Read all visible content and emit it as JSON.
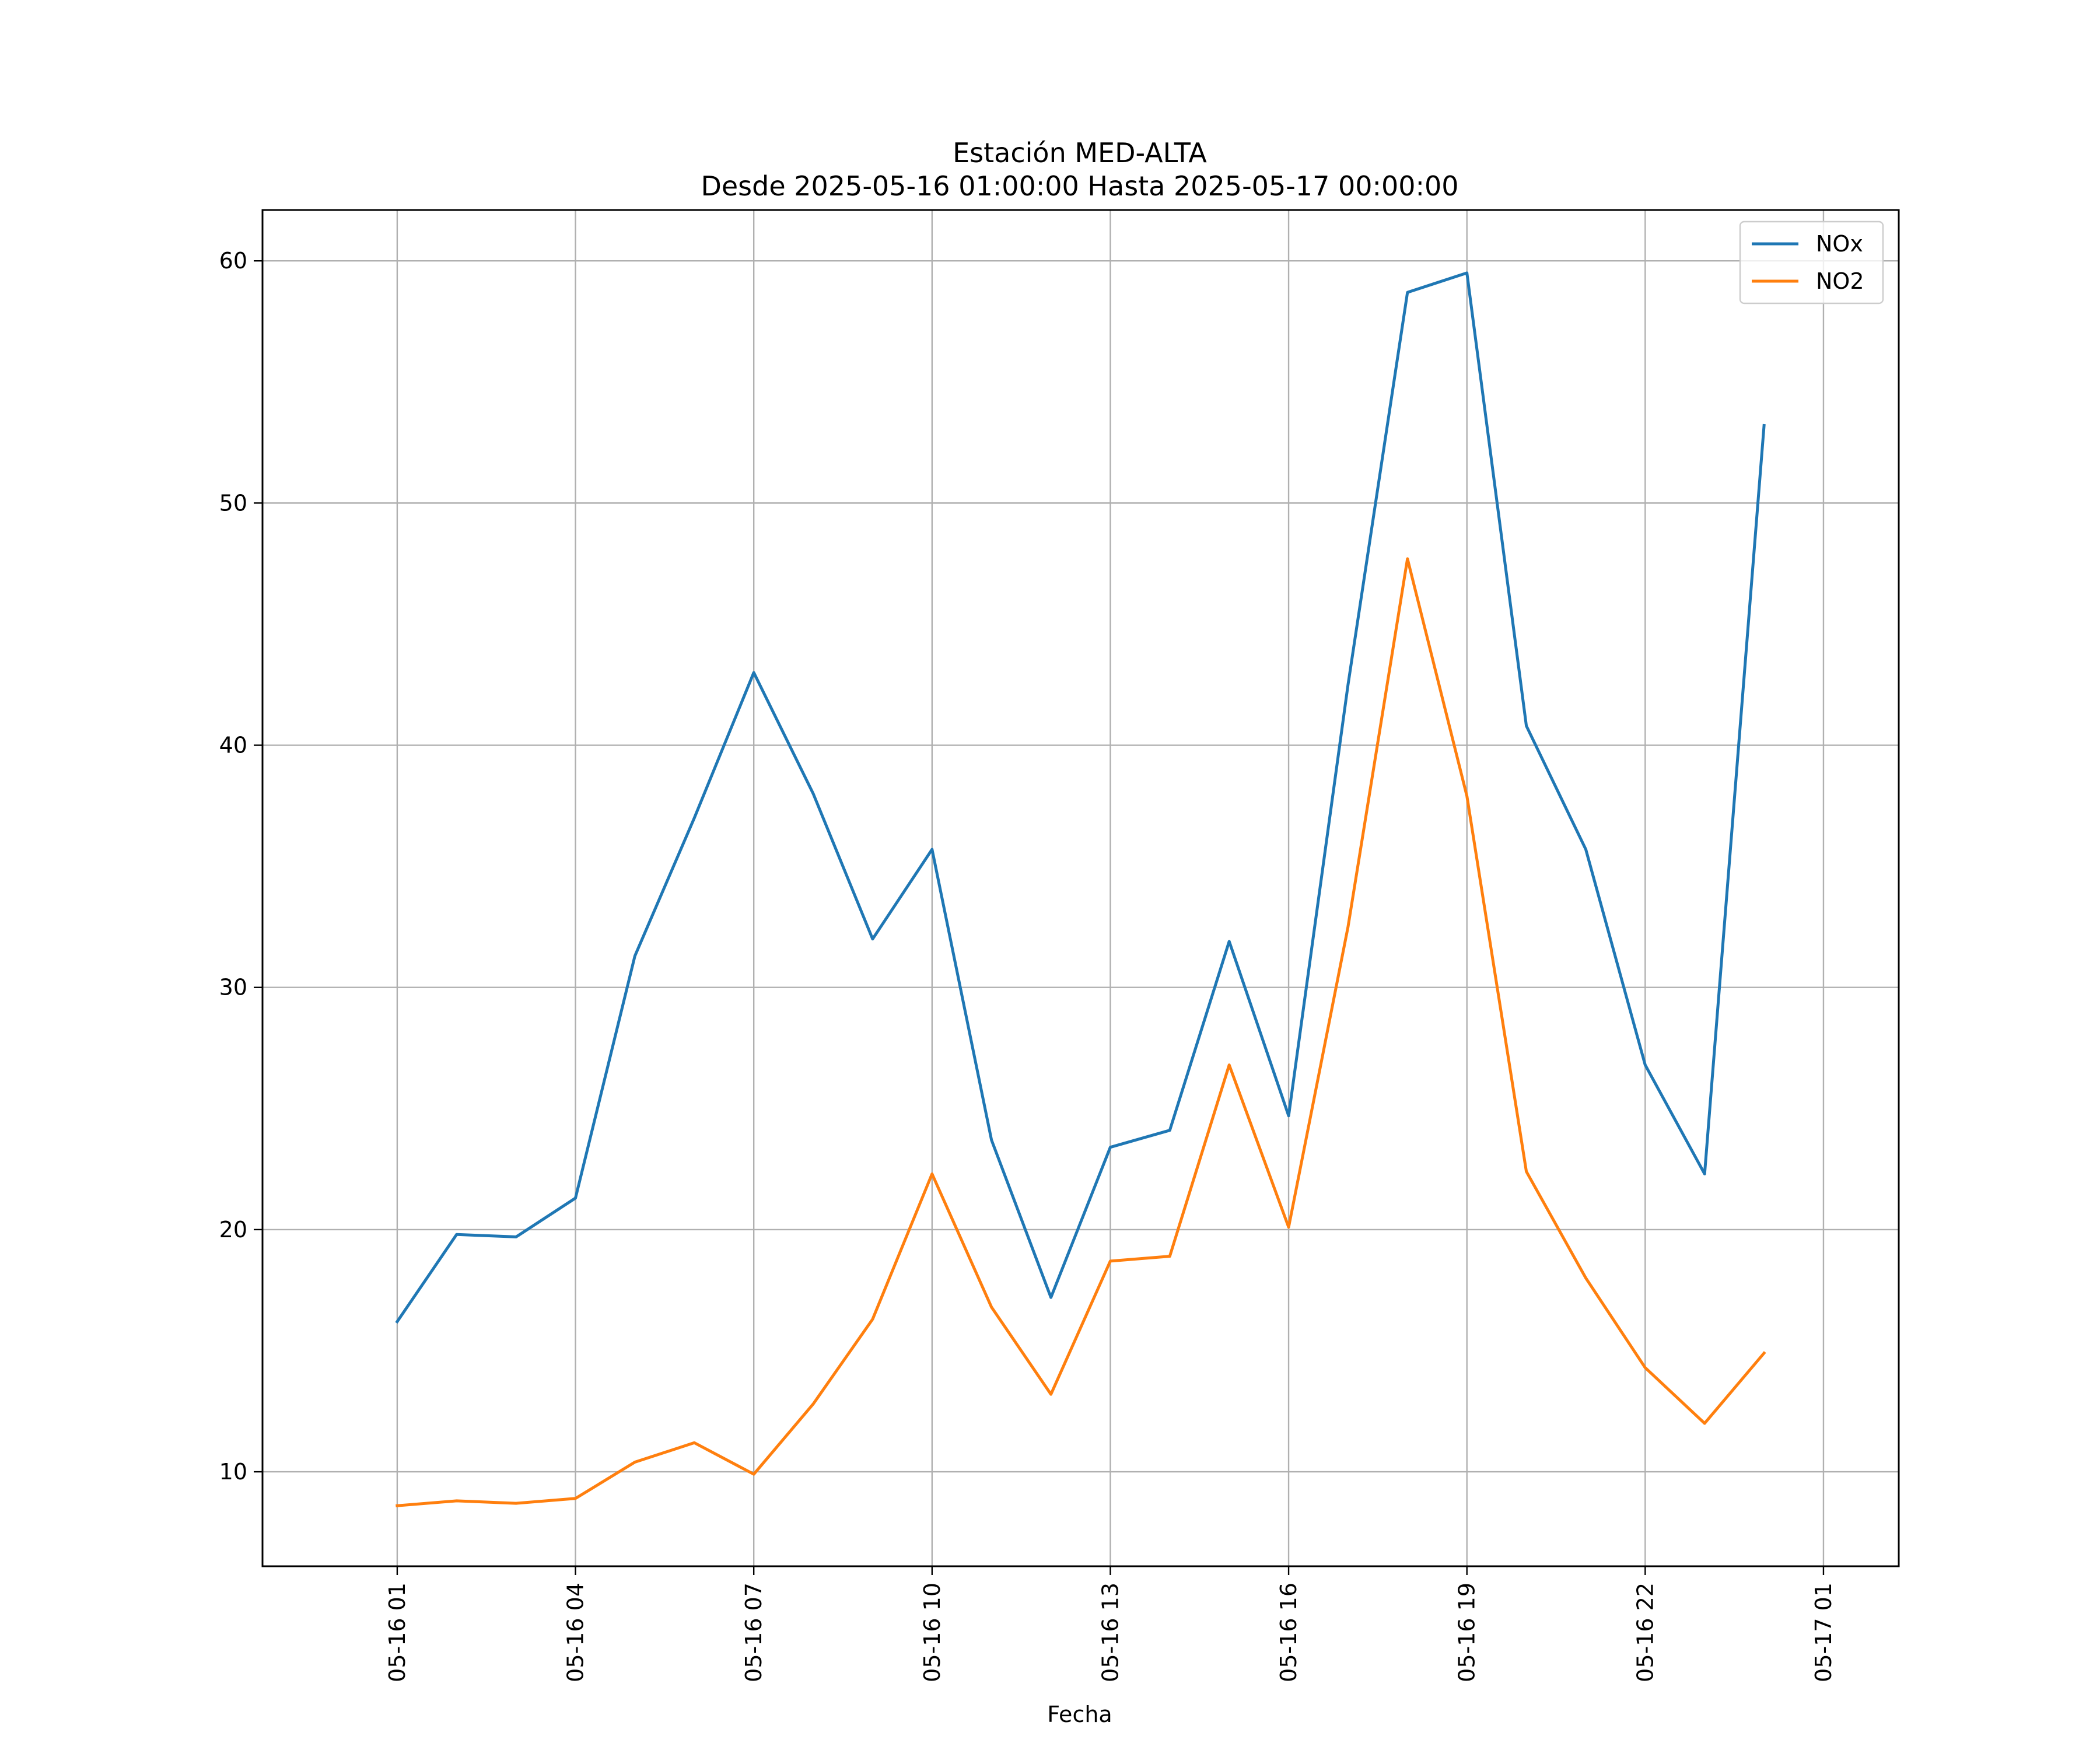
{
  "chart_data": {
    "type": "line",
    "title": "Estación MED-ALTA",
    "subtitle": "Desde 2025-05-16 01:00:00 Hasta 2025-05-17 00:00:00",
    "xlabel": "Fecha",
    "ylabel": "",
    "x": [
      "2025-05-16 01:00",
      "2025-05-16 02:00",
      "2025-05-16 03:00",
      "2025-05-16 04:00",
      "2025-05-16 05:00",
      "2025-05-16 06:00",
      "2025-05-16 07:00",
      "2025-05-16 08:00",
      "2025-05-16 09:00",
      "2025-05-16 10:00",
      "2025-05-16 11:00",
      "2025-05-16 12:00",
      "2025-05-16 13:00",
      "2025-05-16 14:00",
      "2025-05-16 15:00",
      "2025-05-16 16:00",
      "2025-05-16 17:00",
      "2025-05-16 18:00",
      "2025-05-16 19:00",
      "2025-05-16 20:00",
      "2025-05-16 21:00",
      "2025-05-16 22:00",
      "2025-05-16 23:00",
      "2025-05-17 00:00"
    ],
    "series": [
      {
        "name": "NOx",
        "color": "#1f77b4",
        "values": [
          16.2,
          19.8,
          19.7,
          21.3,
          31.3,
          37.0,
          43.0,
          38.0,
          32.0,
          35.7,
          23.7,
          17.2,
          23.4,
          24.1,
          31.9,
          24.7,
          42.5,
          58.7,
          59.5,
          40.8,
          35.7,
          26.8,
          22.3,
          53.2
        ]
      },
      {
        "name": "NO2",
        "color": "#ff7f0e",
        "values": [
          8.6,
          8.8,
          8.7,
          8.9,
          10.4,
          11.2,
          9.9,
          12.8,
          16.3,
          22.3,
          16.8,
          13.2,
          18.7,
          18.9,
          26.8,
          20.1,
          32.5,
          47.7,
          37.9,
          22.4,
          18.0,
          14.3,
          12.0,
          14.9
        ]
      }
    ],
    "xticks": [
      "05-16 01",
      "05-16 04",
      "05-16 07",
      "05-16 10",
      "05-16 13",
      "05-16 16",
      "05-16 19",
      "05-16 22",
      "05-17 01"
    ],
    "xlim": [
      "2025-05-15 22:44",
      "2025-05-17 02:16"
    ],
    "yticks": [
      10,
      20,
      30,
      40,
      50,
      60
    ],
    "ylim": [
      6.1,
      62.1
    ],
    "grid": true,
    "legend_position": "upper right"
  }
}
